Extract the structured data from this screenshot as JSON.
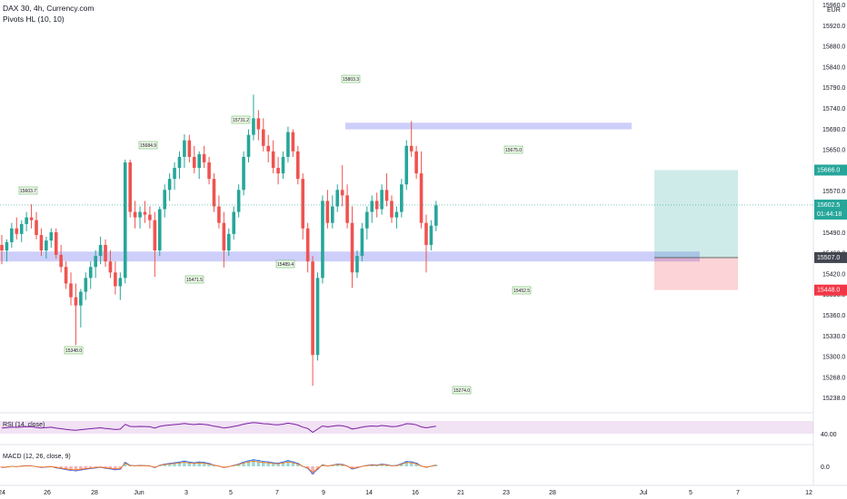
{
  "header": {
    "title": "DAX 30, 4h, Currency.com",
    "indicator": "Pivots HL (10, 10)",
    "currency": "EUR"
  },
  "price_axis": {
    "ticks": [
      "15960.0",
      "15920.0",
      "15880.0",
      "15840.0",
      "15790.0",
      "15740.0",
      "15690.0",
      "15650.0",
      "15610.0",
      "15570.0",
      "15530.0",
      "15490.0",
      "15460.0",
      "15420.0",
      "15390.0",
      "15360.0",
      "15330.0",
      "15300.0",
      "15268.0",
      "15238.0"
    ],
    "current_price": "15602.5",
    "countdown": "01:44:18",
    "take_profit_label": "15666.0",
    "entry_label": "15507.0",
    "stop_label": "15448.0",
    "colors": {
      "current": "#26a69a",
      "take_profit": "#26a69a",
      "entry": "#434651",
      "stop": "#f23645"
    }
  },
  "time_axis": {
    "labels": [
      "24",
      "26",
      "28",
      "Jun",
      "3",
      "5",
      "7",
      "9",
      "14",
      "16",
      "21",
      "23",
      "28",
      "Jul",
      "5",
      "7",
      "12"
    ]
  },
  "pivot_labels": [
    "15603.7",
    "15684.9",
    "15731.2",
    "15803.3",
    "15675.0",
    "15348.0",
    "15471.5",
    "15489.4",
    "15274.0",
    "15452.5"
  ],
  "zones": {
    "resistance": {
      "from": 15740,
      "to": 15752,
      "color": "#b2b5f7"
    },
    "support": {
      "from": 15500,
      "to": 15518,
      "color": "#b2b5f7"
    }
  },
  "rsi": {
    "label": "RSI (14, close)",
    "level": "40.00",
    "color": "#7b1fa2"
  },
  "macd": {
    "label": "MACD (12, 26, close, 9)",
    "level": "0.0"
  },
  "chart_data": {
    "type": "candlestick",
    "title": "DAX 30, 4h, Currency.com",
    "ylim": [
      15225,
      15975
    ],
    "candles": [
      [
        15530,
        15548,
        15495,
        15520
      ],
      [
        15520,
        15540,
        15500,
        15535
      ],
      [
        15535,
        15570,
        15525,
        15560
      ],
      [
        15560,
        15580,
        15540,
        15550
      ],
      [
        15550,
        15575,
        15535,
        15568
      ],
      [
        15568,
        15590,
        15555,
        15580
      ],
      [
        15580,
        15604,
        15560,
        15575
      ],
      [
        15575,
        15590,
        15540,
        15548
      ],
      [
        15548,
        15560,
        15510,
        15520
      ],
      [
        15520,
        15545,
        15505,
        15538
      ],
      [
        15538,
        15560,
        15525,
        15553
      ],
      [
        15553,
        15560,
        15505,
        15512
      ],
      [
        15512,
        15530,
        15480,
        15490
      ],
      [
        15490,
        15500,
        15450,
        15460
      ],
      [
        15460,
        15480,
        15420,
        15435
      ],
      [
        15435,
        15460,
        15348,
        15420
      ],
      [
        15420,
        15450,
        15380,
        15445
      ],
      [
        15445,
        15480,
        15430,
        15470
      ],
      [
        15470,
        15500,
        15450,
        15490
      ],
      [
        15490,
        15520,
        15470,
        15510
      ],
      [
        15510,
        15545,
        15495,
        15530
      ],
      [
        15530,
        15540,
        15490,
        15500
      ],
      [
        15500,
        15520,
        15470,
        15480
      ],
      [
        15480,
        15500,
        15440,
        15455
      ],
      [
        15455,
        15480,
        15430,
        15470
      ],
      [
        15470,
        15685,
        15460,
        15680
      ],
      [
        15680,
        15685,
        15580,
        15590
      ],
      [
        15590,
        15610,
        15560,
        15580
      ],
      [
        15580,
        15600,
        15560,
        15590
      ],
      [
        15590,
        15610,
        15570,
        15585
      ],
      [
        15585,
        15600,
        15560,
        15575
      ],
      [
        15575,
        15590,
        15472,
        15520
      ],
      [
        15520,
        15600,
        15510,
        15595
      ],
      [
        15595,
        15640,
        15580,
        15630
      ],
      [
        15630,
        15660,
        15610,
        15650
      ],
      [
        15650,
        15680,
        15630,
        15670
      ],
      [
        15670,
        15700,
        15650,
        15690
      ],
      [
        15690,
        15731,
        15670,
        15720
      ],
      [
        15720,
        15730,
        15680,
        15690
      ],
      [
        15690,
        15710,
        15660,
        15670
      ],
      [
        15670,
        15700,
        15650,
        15695
      ],
      [
        15695,
        15710,
        15670,
        15680
      ],
      [
        15680,
        15690,
        15640,
        15650
      ],
      [
        15650,
        15660,
        15590,
        15600
      ],
      [
        15600,
        15620,
        15560,
        15570
      ],
      [
        15570,
        15590,
        15489,
        15520
      ],
      [
        15520,
        15560,
        15510,
        15550
      ],
      [
        15550,
        15600,
        15540,
        15590
      ],
      [
        15590,
        15640,
        15580,
        15630
      ],
      [
        15630,
        15700,
        15620,
        15690
      ],
      [
        15690,
        15740,
        15680,
        15730
      ],
      [
        15730,
        15803,
        15720,
        15760
      ],
      [
        15760,
        15775,
        15720,
        15740
      ],
      [
        15740,
        15760,
        15700,
        15710
      ],
      [
        15710,
        15730,
        15680,
        15700
      ],
      [
        15700,
        15720,
        15660,
        15670
      ],
      [
        15670,
        15690,
        15640,
        15660
      ],
      [
        15660,
        15700,
        15650,
        15690
      ],
      [
        15690,
        15745,
        15680,
        15735
      ],
      [
        15735,
        15740,
        15690,
        15700
      ],
      [
        15700,
        15710,
        15640,
        15650
      ],
      [
        15650,
        15660,
        15540,
        15560
      ],
      [
        15560,
        15570,
        15480,
        15500
      ],
      [
        15500,
        15510,
        15274,
        15330
      ],
      [
        15330,
        15480,
        15320,
        15470
      ],
      [
        15470,
        15620,
        15460,
        15610
      ],
      [
        15610,
        15630,
        15560,
        15570
      ],
      [
        15570,
        15620,
        15560,
        15600
      ],
      [
        15600,
        15640,
        15590,
        15630
      ],
      [
        15630,
        15675,
        15600,
        15620
      ],
      [
        15620,
        15640,
        15560,
        15570
      ],
      [
        15570,
        15600,
        15452,
        15480
      ],
      [
        15480,
        15520,
        15470,
        15510
      ],
      [
        15510,
        15570,
        15500,
        15560
      ],
      [
        15560,
        15600,
        15540,
        15590
      ],
      [
        15590,
        15620,
        15570,
        15610
      ],
      [
        15610,
        15625,
        15580,
        15595
      ],
      [
        15595,
        15640,
        15585,
        15630
      ],
      [
        15630,
        15660,
        15600,
        15610
      ],
      [
        15610,
        15620,
        15570,
        15580
      ],
      [
        15580,
        15600,
        15560,
        15590
      ],
      [
        15590,
        15650,
        15580,
        15640
      ],
      [
        15640,
        15720,
        15630,
        15710
      ],
      [
        15710,
        15755,
        15690,
        15700
      ],
      [
        15700,
        15710,
        15650,
        15660
      ],
      [
        15660,
        15700,
        15560,
        15570
      ],
      [
        15570,
        15585,
        15480,
        15530
      ],
      [
        15530,
        15575,
        15520,
        15565
      ],
      [
        15565,
        15610,
        15555,
        15602
      ]
    ],
    "position": {
      "entry": 15507,
      "take_profit": 15666,
      "stop": 15448
    }
  }
}
